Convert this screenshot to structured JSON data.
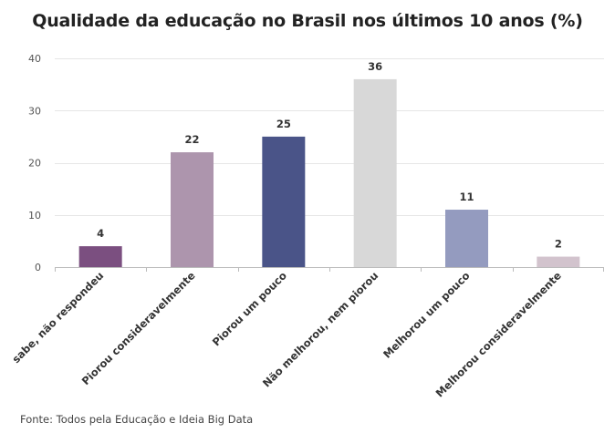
{
  "chart_data": {
    "type": "bar",
    "title": "Qualidade da educação no Brasil nos últimos 10 anos (%)",
    "xlabel": "",
    "ylabel": "",
    "ylim": [
      0,
      40
    ],
    "yticks": [
      0,
      10,
      20,
      30,
      40
    ],
    "grid": true,
    "categories": [
      "sabe, não respondeu",
      "Piorou consideravelmente",
      "Piorou um pouco",
      "Não melhorou, nem piorou",
      "Melhorou um pouco",
      "Melhorou consideravelmente"
    ],
    "values": [
      4,
      22,
      25,
      36,
      11,
      2
    ],
    "colors": [
      "#7b4f80",
      "#ad95ad",
      "#4a5488",
      "#d8d8d8",
      "#949bbf",
      "#d2c3cd"
    ]
  },
  "source": "Fonte: Todos pela Educação e Ideia Big Data"
}
